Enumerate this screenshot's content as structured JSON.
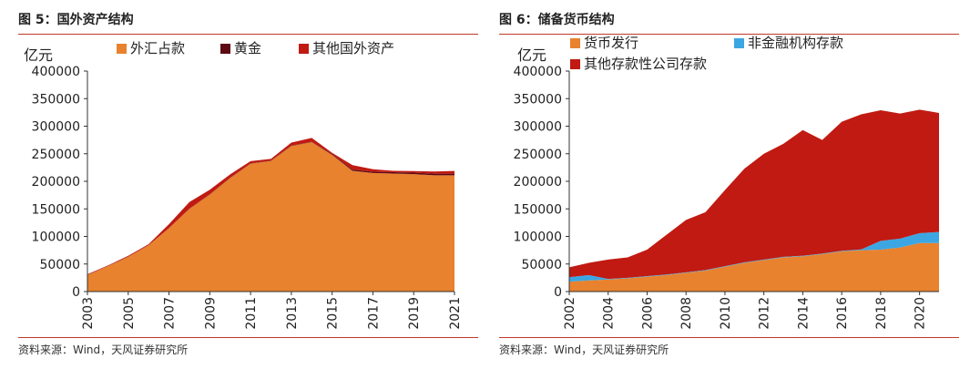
{
  "chart_data": [
    {
      "type": "area",
      "title": "图 5：国外资产结构",
      "ylabel": "亿元",
      "ylim": [
        0,
        400000
      ],
      "yticks": [
        0,
        50000,
        100000,
        150000,
        200000,
        250000,
        300000,
        350000,
        400000
      ],
      "xticks": [
        "2003",
        "2005",
        "2007",
        "2009",
        "2011",
        "2013",
        "2015",
        "2017",
        "2019",
        "2021"
      ],
      "x": [
        2003,
        2004,
        2005,
        2006,
        2007,
        2008,
        2009,
        2010,
        2011,
        2012,
        2013,
        2014,
        2015,
        2016,
        2017,
        2018,
        2019,
        2020,
        2021
      ],
      "stacked": true,
      "legend": "top",
      "series": [
        {
          "name": "外汇占款",
          "color": "#e8822e",
          "values": [
            30000,
            46000,
            63000,
            84000,
            115000,
            150000,
            176000,
            206000,
            232000,
            237000,
            264000,
            271000,
            248000,
            219000,
            215000,
            214000,
            213000,
            211000,
            211000
          ]
        },
        {
          "name": "黄金",
          "color": "#5c0a14",
          "values": [
            340,
            340,
            340,
            340,
            340,
            340,
            670,
            670,
            670,
            670,
            670,
            670,
            1300,
            2300,
            2400,
            2500,
            2800,
            2800,
            2800
          ]
        },
        {
          "name": "其他国外资产",
          "color": "#c01a12",
          "values": [
            1000,
            1000,
            1500,
            1600,
            7000,
            12000,
            8000,
            6000,
            4000,
            3000,
            5500,
            7000,
            2300,
            8000,
            4600,
            2500,
            2700,
            4000,
            5000
          ]
        }
      ]
    },
    {
      "type": "area",
      "title": "图 6：储备货币结构",
      "ylabel": "亿元",
      "ylim": [
        0,
        400000
      ],
      "yticks": [
        0,
        50000,
        100000,
        150000,
        200000,
        250000,
        300000,
        350000,
        400000
      ],
      "xticks": [
        "2002",
        "2004",
        "2006",
        "2008",
        "2010",
        "2012",
        "2014",
        "2016",
        "2018",
        "2020"
      ],
      "x": [
        2002,
        2003,
        2004,
        2005,
        2006,
        2007,
        2008,
        2009,
        2010,
        2011,
        2012,
        2013,
        2014,
        2015,
        2016,
        2017,
        2018,
        2019,
        2020,
        2021
      ],
      "stacked": true,
      "legend": "top",
      "series": [
        {
          "name": "货币发行",
          "color": "#e8822e",
          "values": [
            18000,
            20000,
            22000,
            24000,
            27000,
            30000,
            34000,
            38000,
            45000,
            52000,
            57000,
            62000,
            64000,
            68000,
            73000,
            75000,
            76000,
            80000,
            88000,
            88000
          ]
        },
        {
          "name": "非金融机构存款",
          "color": "#3ca6e2",
          "values": [
            8000,
            10000,
            1000,
            1000,
            1000,
            1000,
            1000,
            1000,
            1000,
            1000,
            1000,
            1000,
            1000,
            1000,
            1000,
            1500,
            16000,
            16000,
            18000,
            20000
          ]
        },
        {
          "name": "其他存款性公司存款",
          "color": "#c01a12",
          "values": [
            18000,
            22000,
            35000,
            37000,
            48000,
            72000,
            95000,
            105000,
            138000,
            170000,
            192000,
            205000,
            228000,
            206000,
            234000,
            245000,
            237000,
            227000,
            224000,
            216000
          ]
        }
      ]
    }
  ],
  "panels": [
    {
      "title": "图 5：国外资产结构",
      "source": "资料来源：Wind，天风证券研究所"
    },
    {
      "title": "图 6：储备货币结构",
      "source": "资料来源：Wind，天风证券研究所"
    }
  ]
}
